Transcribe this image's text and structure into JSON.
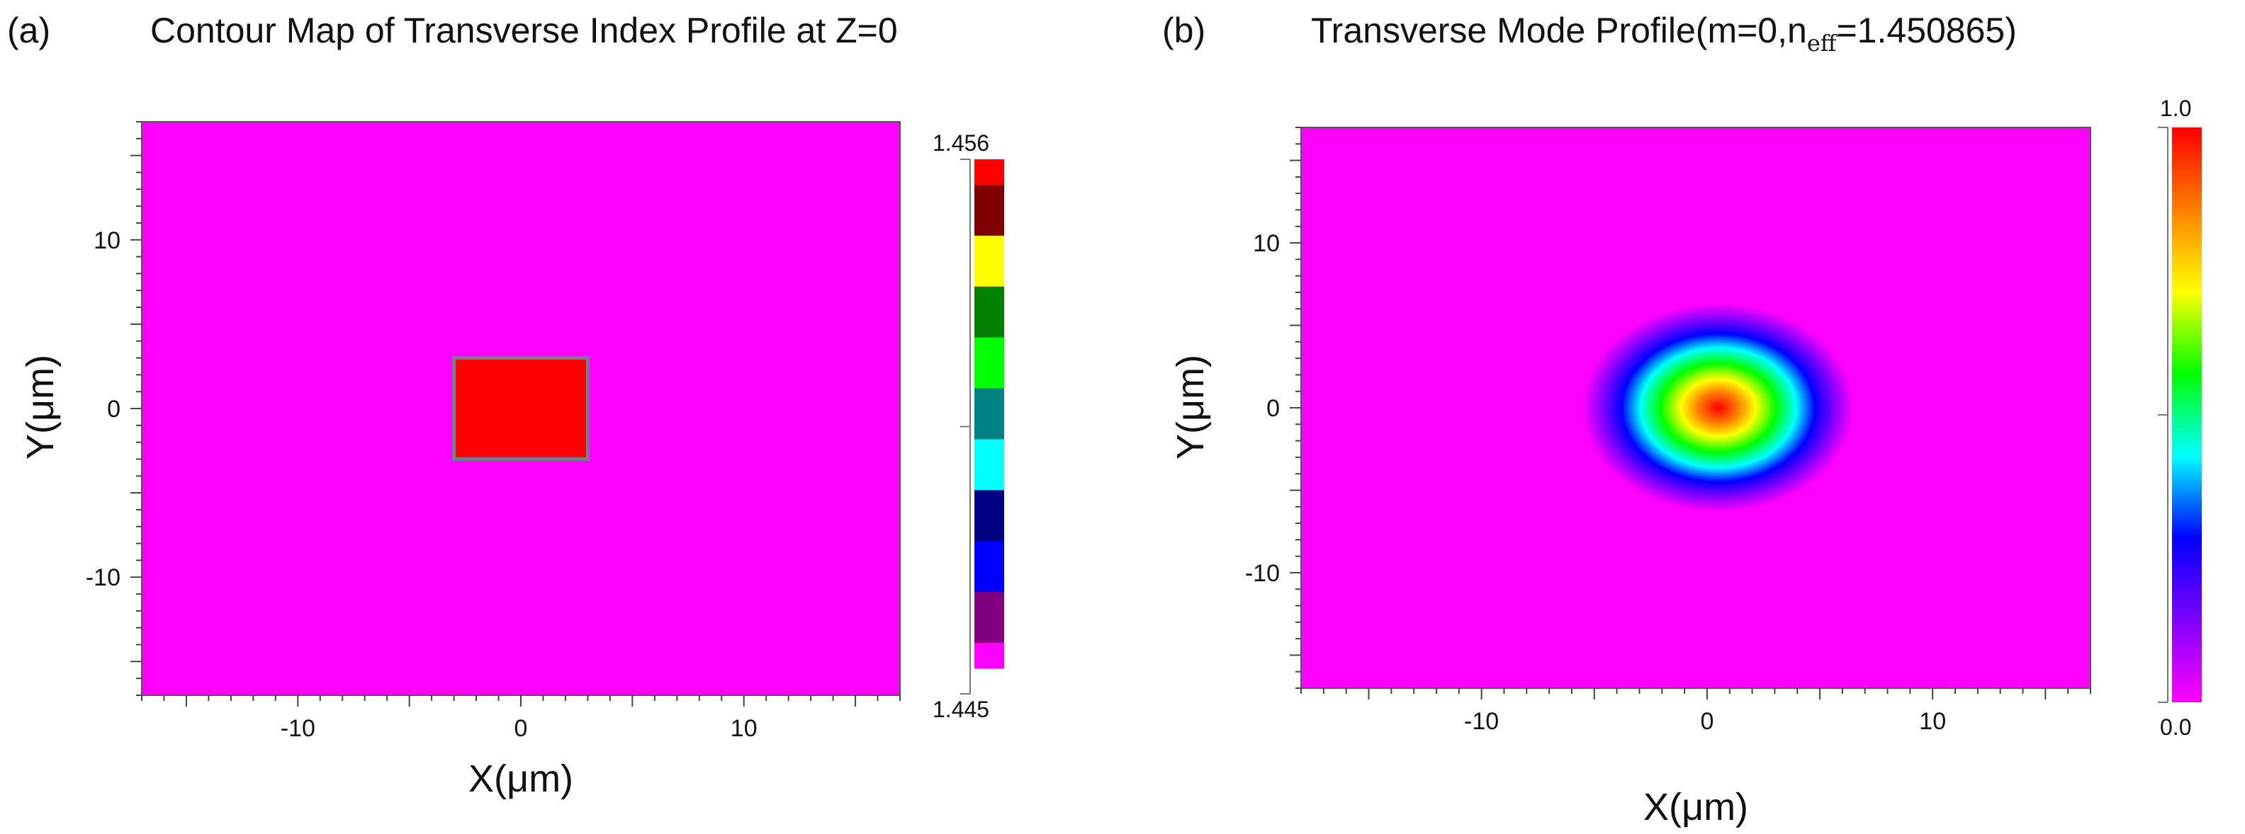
{
  "chart_data": [
    {
      "type": "heatmap",
      "panel_label": "(a)",
      "title": "Contour Map of Transverse Index Profile at Z=0",
      "xlabel": "X(μm)",
      "ylabel": "Y(μm)",
      "xlim": [
        -17,
        17
      ],
      "ylim": [
        -17,
        17
      ],
      "xticks": [
        -10,
        0,
        10
      ],
      "yticks": [
        10,
        0,
        -10
      ],
      "background_index": 1.445,
      "background_color": "#ff00ff",
      "core": {
        "x_range": [
          -3,
          3
        ],
        "y_range": [
          -3,
          3
        ],
        "index": 1.456,
        "color": "#ff0000",
        "border_color": "#708090"
      },
      "colorbar": {
        "max_label": "1.456",
        "min_label": "1.445",
        "min": 1.445,
        "max": 1.456,
        "colors": [
          "#ff00ff",
          "#800080",
          "#0000ff",
          "#000080",
          "#00ffff",
          "#008080",
          "#00ff00",
          "#008000",
          "#ffff00",
          "#800000",
          "#ff0000"
        ]
      }
    },
    {
      "type": "heatmap",
      "panel_label": "(b)",
      "title_main": "Transverse Mode Profile(m=0,n",
      "title_sub": "eff",
      "title_tail": "=1.450865)",
      "xlabel": "X(μm)",
      "ylabel": "Y(μm)",
      "xlim": [
        -18,
        17
      ],
      "ylim": [
        -17,
        17
      ],
      "xticks": [
        -10,
        0,
        10
      ],
      "yticks": [
        10,
        0,
        -10
      ],
      "mode": {
        "m": 0,
        "n_eff": 1.450865,
        "center": [
          0.5,
          0
        ],
        "peak_value": 1.0
      },
      "colorbar": {
        "max_label": "1.0",
        "min_label": "0.0",
        "min": 0.0,
        "max": 1.0,
        "colors": [
          "#ff00ff",
          "#7f00ff",
          "#0000ff",
          "#00ffff",
          "#00ff00",
          "#ffff00",
          "#ff7f00",
          "#ff0000"
        ]
      }
    }
  ]
}
